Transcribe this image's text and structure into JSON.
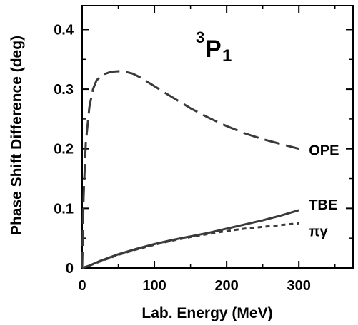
{
  "chart_data": {
    "type": "line",
    "title": {
      "superscript": "3",
      "main": "P",
      "subscript": "1"
    },
    "xlabel": "Lab. Energy (MeV)",
    "ylabel": "Phase Shift Difference (deg)",
    "xlim": [
      0,
      375
    ],
    "ylim": [
      0,
      0.44
    ],
    "xticks": [
      {
        "value": 0,
        "label": "0"
      },
      {
        "value": 100,
        "label": "100"
      },
      {
        "value": 200,
        "label": "200"
      },
      {
        "value": 300,
        "label": "300"
      }
    ],
    "yticks": [
      {
        "value": 0,
        "label": "0"
      },
      {
        "value": 0.1,
        "label": "0.1"
      },
      {
        "value": 0.2,
        "label": "0.2"
      },
      {
        "value": 0.3,
        "label": "0.3"
      },
      {
        "value": 0.4,
        "label": "0.4"
      }
    ],
    "grid": false,
    "series": [
      {
        "name": "OPE",
        "style": "long-dash",
        "color": "#3a3a3a",
        "x": [
          0,
          2,
          5,
          10,
          15,
          20,
          30,
          40,
          50,
          60,
          70,
          80,
          100,
          120,
          150,
          175,
          200,
          225,
          250,
          275,
          300
        ],
        "y": [
          0,
          0.12,
          0.21,
          0.27,
          0.3,
          0.315,
          0.325,
          0.329,
          0.33,
          0.329,
          0.326,
          0.32,
          0.305,
          0.29,
          0.268,
          0.252,
          0.238,
          0.226,
          0.216,
          0.208,
          0.2
        ]
      },
      {
        "name": "TBE",
        "style": "solid",
        "color": "#3a3a3a",
        "x": [
          0,
          10,
          25,
          50,
          75,
          100,
          125,
          150,
          175,
          200,
          225,
          250,
          275,
          300
        ],
        "y": [
          0,
          0.004,
          0.012,
          0.023,
          0.032,
          0.04,
          0.047,
          0.053,
          0.059,
          0.066,
          0.073,
          0.08,
          0.088,
          0.097
        ]
      },
      {
        "name": "πγ",
        "style": "short-dash",
        "color": "#3a3a3a",
        "x": [
          0,
          10,
          25,
          50,
          75,
          100,
          125,
          150,
          175,
          200,
          225,
          250,
          275,
          300
        ],
        "y": [
          0,
          0.004,
          0.011,
          0.022,
          0.031,
          0.039,
          0.046,
          0.052,
          0.057,
          0.062,
          0.066,
          0.069,
          0.072,
          0.075
        ]
      }
    ]
  }
}
